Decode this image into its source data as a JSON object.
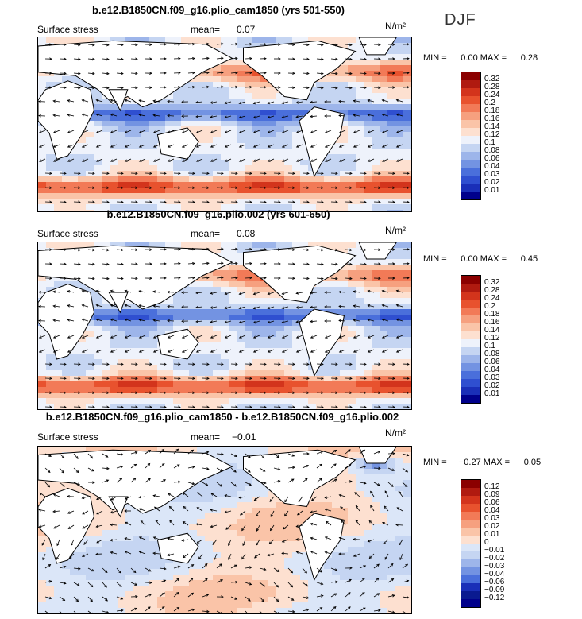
{
  "season": "DJF",
  "units": "N/m²",
  "panels": [
    {
      "title": "b.e12.B1850CN.f09_g16.plio_cam1850 (yrs 501-550)",
      "field_label": "Surface stress",
      "mean_label": "mean=",
      "mean_value": "0.07",
      "min_label": "MIN =",
      "min_value": "0.00",
      "max_label": "MAX =",
      "max_value": "0.28",
      "colorbar_levels": [
        "0.32",
        "0.28",
        "0.24",
        "0.2",
        "0.18",
        "0.16",
        "0.14",
        "0.12",
        "0.1",
        "0.08",
        "0.06",
        "0.04",
        "0.03",
        "0.02",
        "0.01"
      ],
      "colorbar_colors": [
        "#8b0000",
        "#b01a10",
        "#d3341c",
        "#e8522e",
        "#f27a57",
        "#f6a07f",
        "#fac4a8",
        "#fde0d0",
        "#eef2fb",
        "#c5d5f2",
        "#9db5ea",
        "#7393e2",
        "#4a6fdb",
        "#2f4fd0",
        "#1a2fb8",
        "#00008b"
      ],
      "map_style": "magnitude"
    },
    {
      "title": "b.e12.B1850CN.f09_g16.plio.002 (yrs 601-650)",
      "field_label": "Surface stress",
      "mean_label": "mean=",
      "mean_value": "0.08",
      "min_label": "MIN =",
      "min_value": "0.00",
      "max_label": "MAX =",
      "max_value": "0.45",
      "colorbar_levels": [
        "0.32",
        "0.28",
        "0.24",
        "0.2",
        "0.18",
        "0.16",
        "0.14",
        "0.12",
        "0.1",
        "0.08",
        "0.06",
        "0.04",
        "0.03",
        "0.02",
        "0.01"
      ],
      "colorbar_colors": [
        "#8b0000",
        "#b01a10",
        "#d3341c",
        "#e8522e",
        "#f27a57",
        "#f6a07f",
        "#fac4a8",
        "#fde0d0",
        "#eef2fb",
        "#c5d5f2",
        "#9db5ea",
        "#7393e2",
        "#4a6fdb",
        "#2f4fd0",
        "#1a2fb8",
        "#00008b"
      ],
      "map_style": "magnitude"
    },
    {
      "title": "b.e12.B1850CN.f09_g16.plio_cam1850 - b.e12.B1850CN.f09_g16.plio.002",
      "field_label": "Surface stress",
      "mean_label": "mean=",
      "mean_value": "−0.01",
      "min_label": "MIN =",
      "min_value": "−0.27",
      "max_label": "MAX =",
      "max_value": "0.05",
      "colorbar_levels": [
        "0.12",
        "0.09",
        "0.06",
        "0.04",
        "0.03",
        "0.02",
        "0.01",
        "0",
        "−0.01",
        "−0.02",
        "−0.03",
        "−0.04",
        "−0.06",
        "−0.09",
        "−0.12"
      ],
      "colorbar_colors": [
        "#8b0000",
        "#b01a10",
        "#d3341c",
        "#e8522e",
        "#f27a57",
        "#f6a07f",
        "#fac4a8",
        "#fde0d0",
        "#dbe6f8",
        "#c5d5f2",
        "#9db5ea",
        "#7393e2",
        "#4a6fdb",
        "#1a2fb8",
        "#0a1a90",
        "#00008b"
      ],
      "map_style": "difference"
    }
  ]
}
